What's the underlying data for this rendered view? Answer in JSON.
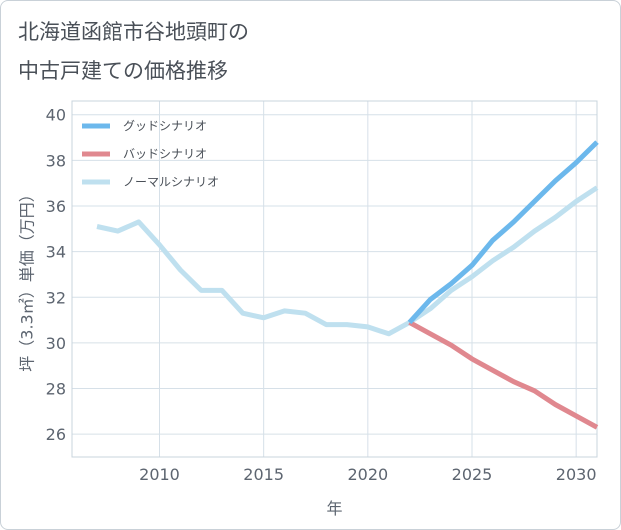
{
  "title_lines": [
    "北海道函館市谷地頭町の",
    "中古戸建ての価格推移"
  ],
  "chart_data": {
    "type": "line",
    "xlabel": "年",
    "ylabel": "坪（3.3㎡）単価（万円）",
    "xlim": [
      2005.8,
      2031
    ],
    "ylim": [
      25,
      40.6
    ],
    "x_ticks": [
      2010,
      2015,
      2020,
      2025,
      2030
    ],
    "y_ticks": [
      26,
      28,
      30,
      32,
      34,
      36,
      38,
      40
    ],
    "grid": true,
    "legend_position": "top-left",
    "series": [
      {
        "name": "グッドシナリオ",
        "color": "#6cb8ec",
        "x": [
          2022,
          2023,
          2024,
          2025,
          2026,
          2027,
          2028,
          2029,
          2030,
          2031
        ],
        "y": [
          30.9,
          31.9,
          32.6,
          33.4,
          34.5,
          35.3,
          36.2,
          37.1,
          37.9,
          38.8
        ]
      },
      {
        "name": "バッドシナリオ",
        "color": "#e0888f",
        "x": [
          2022,
          2023,
          2024,
          2025,
          2026,
          2027,
          2028,
          2029,
          2030,
          2031
        ],
        "y": [
          30.9,
          30.4,
          29.9,
          29.3,
          28.8,
          28.3,
          27.9,
          27.3,
          26.8,
          26.3
        ]
      },
      {
        "name": "ノーマルシナリオ",
        "color": "#bfe0ef",
        "x": [
          2007,
          2008,
          2009,
          2010,
          2011,
          2012,
          2013,
          2014,
          2015,
          2016,
          2017,
          2018,
          2019,
          2020,
          2021,
          2022,
          2023,
          2024,
          2025,
          2026,
          2027,
          2028,
          2029,
          2030,
          2031
        ],
        "y": [
          35.1,
          34.9,
          35.3,
          34.3,
          33.2,
          32.3,
          32.3,
          31.3,
          31.1,
          31.4,
          31.3,
          30.8,
          30.8,
          30.7,
          30.4,
          30.9,
          31.5,
          32.3,
          32.9,
          33.6,
          34.2,
          34.9,
          35.5,
          36.2,
          36.8
        ]
      }
    ]
  }
}
